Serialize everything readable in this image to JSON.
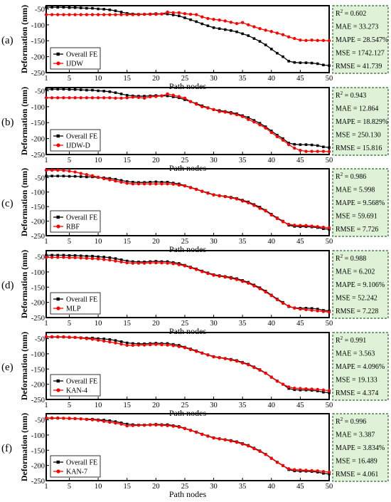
{
  "chart_data": [
    {
      "type": "line",
      "panel_label": "(a)",
      "xlabel": "Path nodes",
      "ylabel": "Deformation (mm)",
      "xlim": [
        1,
        50
      ],
      "ylim": [
        -250,
        -40
      ],
      "xticks": [
        "1",
        "5",
        "10",
        "15",
        "20",
        "25",
        "30",
        "35",
        "40",
        "45",
        "50"
      ],
      "yticks": [
        "-50",
        "-100",
        "-150",
        "-200",
        "-250"
      ],
      "legend_position": "bottom-left",
      "series": [
        {
          "name": "Overall FE",
          "color": "#000000",
          "marker": "square",
          "values": [
            -45,
            -45,
            -45,
            -45,
            -46,
            -46,
            -47,
            -48,
            -48,
            -50,
            -51,
            -53,
            -56,
            -60,
            -64,
            -66,
            -67,
            -67,
            -66,
            -65,
            -66,
            -66,
            -69,
            -72,
            -78,
            -84,
            -90,
            -97,
            -103,
            -109,
            -112,
            -115,
            -118,
            -122,
            -128,
            -134,
            -143,
            -152,
            -163,
            -176,
            -189,
            -200,
            -214,
            -218,
            -219,
            -219,
            -220,
            -222,
            -226,
            -228
          ]
        },
        {
          "name": "IJDW",
          "color": "#ff0000",
          "marker": "circle",
          "values": [
            -68,
            -68,
            -68,
            -68,
            -68,
            -68,
            -68,
            -68,
            -68,
            -68,
            -68,
            -68,
            -68,
            -68,
            -68,
            -68,
            -68,
            -67,
            -67,
            -67,
            -66,
            -60,
            -62,
            -62,
            -65,
            -67,
            -68,
            -75,
            -80,
            -83,
            -85,
            -88,
            -92,
            -96,
            -93,
            -100,
            -106,
            -112,
            -117,
            -121,
            -126,
            -131,
            -138,
            -143,
            -148,
            -149,
            -148,
            -149,
            -149,
            -150
          ]
        }
      ],
      "metrics": {
        "r2": "0.602",
        "mae": "33.273",
        "mape": "28.547%",
        "mse": "1742.127",
        "rmse": "41.739"
      }
    },
    {
      "type": "line",
      "panel_label": "(b)",
      "xlabel": "Path nodes",
      "ylabel": "Deformation (mm)",
      "xlim": [
        1,
        50
      ],
      "ylim": [
        -250,
        -40
      ],
      "xticks": [
        "1",
        "5",
        "10",
        "15",
        "20",
        "25",
        "30",
        "35",
        "40",
        "45",
        "50"
      ],
      "yticks": [
        "-50",
        "-100",
        "-150",
        "-200",
        "-250"
      ],
      "legend_position": "bottom-left",
      "series": [
        {
          "name": "Overall FE",
          "color": "#000000",
          "marker": "square",
          "values": [
            -45,
            -45,
            -45,
            -45,
            -46,
            -46,
            -47,
            -48,
            -48,
            -50,
            -51,
            -53,
            -56,
            -60,
            -64,
            -66,
            -67,
            -67,
            -66,
            -65,
            -66,
            -66,
            -69,
            -72,
            -78,
            -84,
            -90,
            -97,
            -103,
            -109,
            -112,
            -115,
            -118,
            -122,
            -128,
            -134,
            -143,
            -152,
            -163,
            -176,
            -189,
            -200,
            -214,
            -218,
            -219,
            -219,
            -220,
            -222,
            -226,
            -228
          ]
        },
        {
          "name": "IJDW-D",
          "color": "#ff0000",
          "marker": "circle",
          "values": [
            -72,
            -72,
            -72,
            -72,
            -72,
            -72,
            -72,
            -72,
            -72,
            -72,
            -72,
            -72,
            -73,
            -73,
            -72,
            -70,
            -71,
            -73,
            -69,
            -68,
            -66,
            -60,
            -64,
            -68,
            -73,
            -84,
            -92,
            -100,
            -104,
            -109,
            -115,
            -117,
            -121,
            -125,
            -131,
            -140,
            -148,
            -157,
            -167,
            -181,
            -194,
            -205,
            -219,
            -230,
            -237,
            -240,
            -240,
            -240,
            -240,
            -241
          ]
        }
      ],
      "metrics": {
        "r2": "0.943",
        "mae": "12.864",
        "mape": "18.829%",
        "mse": "250.130",
        "rmse": "15.816"
      }
    },
    {
      "type": "line",
      "panel_label": "(c)",
      "xlabel": "Path nodes",
      "ylabel": "Deformation (mm)",
      "xlim": [
        1,
        50
      ],
      "ylim": [
        -250,
        -20
      ],
      "xticks": [
        "1",
        "5",
        "10",
        "15",
        "20",
        "25",
        "30",
        "35",
        "40",
        "45",
        "50"
      ],
      "yticks": [
        "-50",
        "-100",
        "-150",
        "-200",
        "-250"
      ],
      "legend_position": "bottom-left",
      "series": [
        {
          "name": "Overall FE",
          "color": "#000000",
          "marker": "square",
          "values": [
            -45,
            -45,
            -45,
            -45,
            -46,
            -46,
            -47,
            -48,
            -48,
            -50,
            -51,
            -53,
            -56,
            -60,
            -64,
            -66,
            -67,
            -67,
            -66,
            -65,
            -66,
            -66,
            -69,
            -72,
            -78,
            -84,
            -90,
            -97,
            -103,
            -109,
            -112,
            -115,
            -118,
            -122,
            -128,
            -134,
            -143,
            -152,
            -163,
            -176,
            -189,
            -200,
            -214,
            -218,
            -219,
            -219,
            -220,
            -222,
            -226,
            -228
          ]
        },
        {
          "name": "RBF",
          "color": "#ff0000",
          "marker": "circle",
          "values": [
            -25,
            -25,
            -25,
            -26,
            -28,
            -31,
            -36,
            -40,
            -44,
            -49,
            -54,
            -58,
            -62,
            -66,
            -70,
            -72,
            -72,
            -72,
            -72,
            -72,
            -72,
            -72,
            -73,
            -76,
            -79,
            -85,
            -91,
            -98,
            -104,
            -110,
            -113,
            -116,
            -120,
            -124,
            -131,
            -137,
            -146,
            -156,
            -165,
            -179,
            -191,
            -202,
            -211,
            -214,
            -215,
            -215,
            -217,
            -219,
            -221,
            -223
          ]
        }
      ],
      "metrics": {
        "r2": "0.986",
        "mae": "5.998",
        "mape": "9.568%",
        "mse": "59.691",
        "rmse": "7.726"
      }
    },
    {
      "type": "line",
      "panel_label": "(d)",
      "xlabel": "Path nodes",
      "ylabel": "Deformation (mm)",
      "xlim": [
        1,
        50
      ],
      "ylim": [
        -250,
        -30
      ],
      "xticks": [
        "1",
        "5",
        "10",
        "15",
        "20",
        "25",
        "30",
        "35",
        "40",
        "45",
        "50"
      ],
      "yticks": [
        "-50",
        "-100",
        "-150",
        "-200",
        "-250"
      ],
      "legend_position": "bottom-left",
      "series": [
        {
          "name": "Overall FE",
          "color": "#000000",
          "marker": "square",
          "values": [
            -45,
            -45,
            -45,
            -45,
            -46,
            -46,
            -47,
            -48,
            -48,
            -50,
            -51,
            -53,
            -56,
            -60,
            -64,
            -66,
            -67,
            -67,
            -66,
            -65,
            -66,
            -66,
            -69,
            -72,
            -78,
            -84,
            -90,
            -97,
            -103,
            -109,
            -112,
            -115,
            -118,
            -122,
            -128,
            -134,
            -143,
            -152,
            -163,
            -176,
            -189,
            -200,
            -214,
            -218,
            -219,
            -219,
            -220,
            -222,
            -226,
            -228
          ]
        },
        {
          "name": "MLP",
          "color": "#ff0000",
          "marker": "circle",
          "values": [
            -52,
            -52,
            -52,
            -52,
            -53,
            -53,
            -54,
            -55,
            -56,
            -57,
            -59,
            -61,
            -64,
            -67,
            -70,
            -71,
            -71,
            -71,
            -70,
            -70,
            -70,
            -71,
            -73,
            -76,
            -80,
            -86,
            -92,
            -99,
            -105,
            -111,
            -114,
            -117,
            -121,
            -125,
            -131,
            -137,
            -146,
            -155,
            -166,
            -178,
            -191,
            -203,
            -212,
            -219,
            -222,
            -224,
            -226,
            -228,
            -230,
            -232
          ]
        }
      ],
      "metrics": {
        "r2": "0.988",
        "mae": "6.202",
        "mape": "9.106%",
        "mse": "52.242",
        "rmse": "7.228"
      }
    },
    {
      "type": "line",
      "panel_label": "(e)",
      "xlabel": "Path nodes",
      "ylabel": "Deformation (mm)",
      "xlim": [
        1,
        50
      ],
      "ylim": [
        -250,
        -30
      ],
      "xticks": [
        "1",
        "5",
        "10",
        "15",
        "20",
        "25",
        "30",
        "35",
        "40",
        "45",
        "50"
      ],
      "yticks": [
        "-50",
        "-100",
        "-150",
        "-200",
        "-250"
      ],
      "legend_position": "bottom-left",
      "series": [
        {
          "name": "Overall FE",
          "color": "#000000",
          "marker": "square",
          "values": [
            -45,
            -45,
            -45,
            -45,
            -46,
            -46,
            -47,
            -48,
            -48,
            -50,
            -51,
            -53,
            -56,
            -60,
            -64,
            -66,
            -67,
            -67,
            -66,
            -65,
            -66,
            -66,
            -69,
            -72,
            -78,
            -84,
            -90,
            -97,
            -103,
            -109,
            -112,
            -115,
            -118,
            -122,
            -128,
            -134,
            -143,
            -152,
            -163,
            -176,
            -189,
            -200,
            -214,
            -218,
            -219,
            -219,
            -220,
            -222,
            -226,
            -228
          ]
        },
        {
          "name": "KAN-4",
          "color": "#ff0000",
          "marker": "circle",
          "values": [
            -44,
            -44,
            -44,
            -44,
            -45,
            -46,
            -48,
            -50,
            -52,
            -55,
            -58,
            -61,
            -64,
            -68,
            -72,
            -72,
            -71,
            -71,
            -70,
            -69,
            -70,
            -71,
            -73,
            -76,
            -80,
            -86,
            -92,
            -98,
            -104,
            -110,
            -113,
            -116,
            -120,
            -124,
            -130,
            -136,
            -145,
            -154,
            -164,
            -177,
            -190,
            -200,
            -209,
            -213,
            -214,
            -215,
            -216,
            -217,
            -219,
            -221
          ]
        }
      ],
      "metrics": {
        "r2": "0.991",
        "mae": "3.563",
        "mape": "4.096%",
        "mse": "19.133",
        "rmse": "4.374"
      }
    },
    {
      "type": "line",
      "panel_label": "(f)",
      "xlabel": "Path nodes",
      "ylabel": "Deformation (mm)",
      "xlim": [
        1,
        50
      ],
      "ylim": [
        -250,
        -30
      ],
      "xticks": [
        "1",
        "5",
        "10",
        "15",
        "20",
        "25",
        "30",
        "35",
        "40",
        "45",
        "50"
      ],
      "yticks": [
        "-50",
        "-100",
        "-150",
        "-200",
        "-250"
      ],
      "legend_position": "bottom-left",
      "series": [
        {
          "name": "Overall FE",
          "color": "#000000",
          "marker": "square",
          "values": [
            -45,
            -45,
            -45,
            -45,
            -46,
            -46,
            -47,
            -48,
            -48,
            -50,
            -51,
            -53,
            -56,
            -60,
            -64,
            -66,
            -67,
            -67,
            -66,
            -65,
            -66,
            -66,
            -69,
            -72,
            -78,
            -84,
            -90,
            -97,
            -103,
            -109,
            -112,
            -115,
            -118,
            -122,
            -128,
            -134,
            -143,
            -152,
            -163,
            -176,
            -189,
            -200,
            -214,
            -218,
            -219,
            -219,
            -220,
            -222,
            -226,
            -228
          ]
        },
        {
          "name": "KAN-7",
          "color": "#ff0000",
          "marker": "circle",
          "values": [
            -44,
            -44,
            -44,
            -45,
            -45,
            -46,
            -47,
            -49,
            -50,
            -52,
            -55,
            -58,
            -61,
            -64,
            -70,
            -69,
            -68,
            -68,
            -67,
            -67,
            -68,
            -69,
            -71,
            -74,
            -79,
            -85,
            -91,
            -98,
            -104,
            -110,
            -113,
            -116,
            -120,
            -124,
            -130,
            -136,
            -145,
            -154,
            -164,
            -177,
            -190,
            -201,
            -211,
            -214,
            -215,
            -216,
            -217,
            -218,
            -220,
            -222
          ]
        }
      ],
      "metrics": {
        "r2": "0.996",
        "mae": "3.387",
        "mape": "3.834%",
        "mse": "16.489",
        "rmse": "4.061"
      }
    }
  ],
  "metric_labels": {
    "r2": "R",
    "r2_sup": "2",
    "mae": "MAE",
    "mape": "MAPE",
    "mse": "MSE",
    "rmse": "RMSE"
  },
  "colors": {
    "metrics_box_fill": "#dff2d8",
    "metrics_box_border": "#2e6b2e"
  }
}
